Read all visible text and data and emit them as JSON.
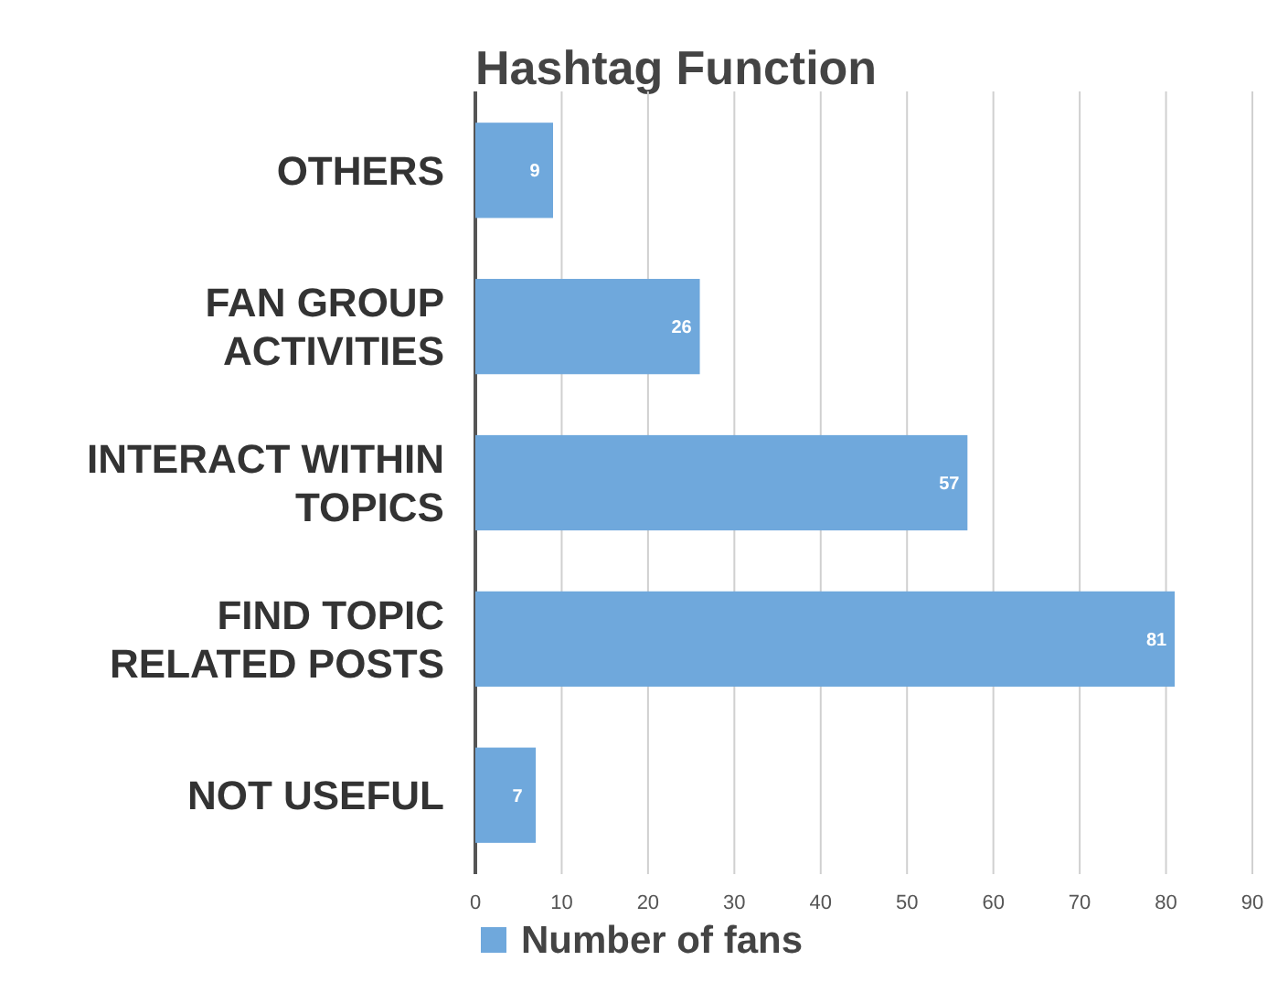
{
  "chart_data": {
    "type": "bar",
    "orientation": "horizontal",
    "title": "Hashtag Function",
    "categories": [
      "OTHERS",
      "FAN GROUP\nACTIVITIES",
      "INTERACT WITHIN\nTOPICS",
      "FIND TOPIC\nRELATED POSTS",
      "NOT USEFUL"
    ],
    "series": [
      {
        "name": "Number of fans",
        "color": "#6fa8dc",
        "values": [
          9,
          26,
          57,
          81,
          7
        ]
      }
    ],
    "xlim": [
      0,
      90
    ],
    "xticks": [
      0,
      10,
      20,
      30,
      40,
      50,
      60,
      70,
      80,
      90
    ],
    "grid": "x",
    "legend": "bottom",
    "data_labels": true
  }
}
